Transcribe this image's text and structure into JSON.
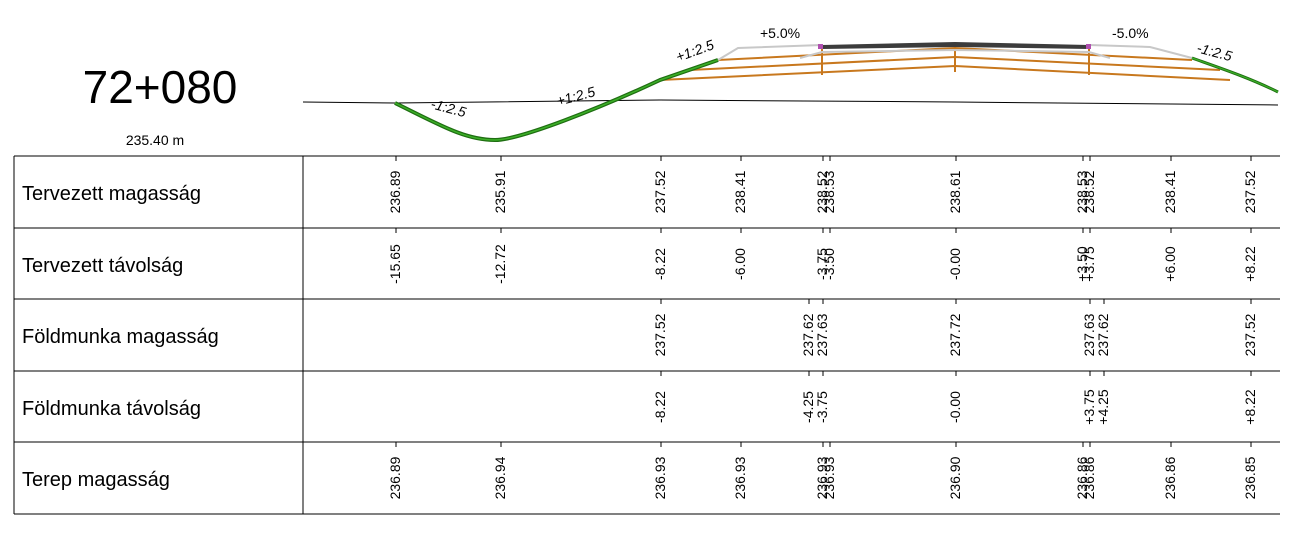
{
  "station": "72+080",
  "reference_elevation": "235.40 m",
  "slope_labels": [
    "-1:2.5",
    "+1:2.5",
    "+1:2.5",
    "+5.0%",
    "-5.0%",
    "-1:2.5"
  ],
  "colors": {
    "slope": "#2e9a1e",
    "slope_dark": "#1f6e12",
    "layer": "#c8781e",
    "pavement": "#404040",
    "formation": "#c8c8c8",
    "terrain": "#000000",
    "lines": "#000000"
  },
  "rows": [
    {
      "label": "Tervezett magasság",
      "values": [
        "236.89",
        "235.91",
        "237.52",
        "238.41",
        "238.52",
        "238.53",
        "238.61",
        "238.53",
        "238.52",
        "238.41",
        "237.52"
      ]
    },
    {
      "label": "Tervezett távolság",
      "values": [
        "-15.65",
        "-12.72",
        "-8.22",
        "-6.00",
        "-3.75",
        "-3.50",
        "-0.00",
        "+3.50",
        "+3.75",
        "+6.00",
        "+8.22"
      ]
    },
    {
      "label": "Földmunka magasság",
      "values": [
        "237.52",
        "237.62",
        "237.63",
        "237.72",
        "237.63",
        "237.62",
        "237.52"
      ]
    },
    {
      "label": "Földmunka távolság",
      "values": [
        "-8.22",
        "-4.25",
        "-3.75",
        "-0.00",
        "+3.75",
        "+4.25",
        "+8.22"
      ]
    },
    {
      "label": "Terep magasság",
      "values": [
        "236.89",
        "236.94",
        "236.93",
        "236.93",
        "236.93",
        "236.93",
        "236.90",
        "236.86",
        "236.86",
        "236.86",
        "236.85"
      ]
    }
  ]
}
